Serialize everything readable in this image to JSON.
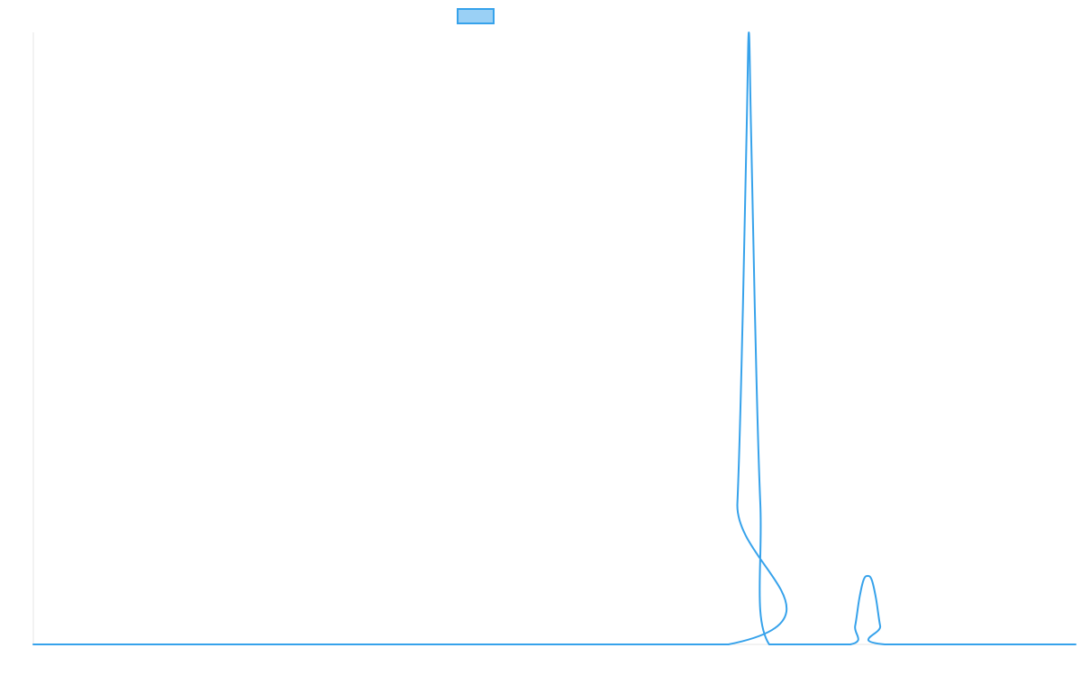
{
  "chart_data": {
    "type": "line",
    "title": "",
    "xlabel": "",
    "ylabel": "",
    "legend": {
      "placement": "top-center",
      "entries": [
        {
          "label": "",
          "color": "#36a2eb",
          "fill": "#9ad0f5"
        }
      ]
    },
    "grid": false,
    "xlim": [
      0,
      1
    ],
    "ylim": [
      0,
      1
    ],
    "series": [
      {
        "color": "#36a2eb",
        "points": [
          [
            0.0,
            0.0
          ],
          [
            0.667,
            0.0
          ],
          [
            0.6755,
            0.23
          ],
          [
            0.6808,
            0.55
          ],
          [
            0.6845,
            0.85
          ],
          [
            0.6865,
            1.0
          ],
          [
            0.6885,
            0.85
          ],
          [
            0.6922,
            0.55
          ],
          [
            0.6975,
            0.23
          ],
          [
            0.706,
            0.0
          ],
          [
            0.784,
            0.0
          ],
          [
            0.7885,
            0.03
          ],
          [
            0.7925,
            0.075
          ],
          [
            0.7965,
            0.105
          ],
          [
            0.8005,
            0.112
          ],
          [
            0.8045,
            0.105
          ],
          [
            0.8085,
            0.075
          ],
          [
            0.8125,
            0.03
          ],
          [
            0.817,
            0.0
          ],
          [
            1.0,
            0.0
          ]
        ]
      }
    ]
  }
}
